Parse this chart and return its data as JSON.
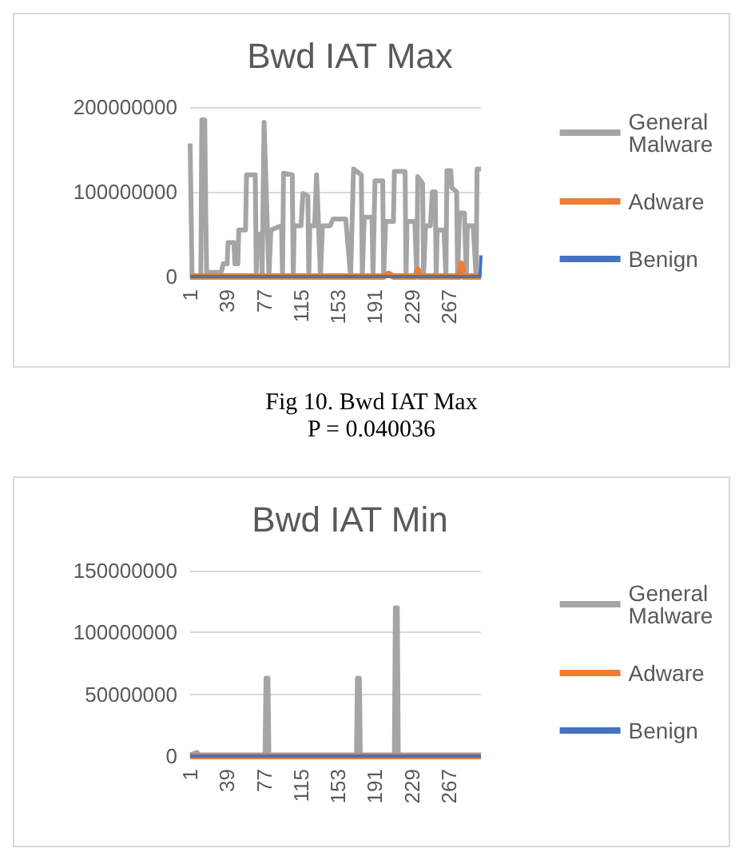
{
  "chart_data": [
    {
      "type": "line",
      "title": "Bwd IAT Max",
      "annotations": [
        "Fig 10. Bwd IAT Max",
        "P = 0.040036"
      ],
      "xlim": [
        1,
        300
      ],
      "xticks": [
        1,
        39,
        77,
        115,
        153,
        191,
        229,
        267
      ],
      "ylim": [
        0,
        200000000
      ],
      "yticks": [
        0,
        100000000,
        200000000
      ],
      "grid": "y",
      "legend": "right",
      "series": [
        {
          "name": "General Malware",
          "color": "#a5a5a5",
          "x": [
            1,
            3,
            12,
            13,
            16,
            17,
            18,
            20,
            33,
            35,
            39,
            40,
            46,
            47,
            50,
            51,
            58,
            59,
            68,
            69,
            70,
            74,
            75,
            77,
            82,
            84,
            95,
            96,
            97,
            106,
            107,
            108,
            115,
            117,
            122,
            123,
            124,
            129,
            131,
            135,
            137,
            145,
            148,
            161,
            166,
            169,
            177,
            178,
            180,
            188,
            189,
            191,
            199,
            200,
            202,
            210,
            211,
            222,
            223,
            224,
            232,
            234,
            235,
            240,
            241,
            243,
            248,
            250,
            253,
            254,
            255,
            262,
            264,
            265,
            269,
            270,
            275,
            276,
            278,
            283,
            285,
            286,
            292,
            295,
            296,
            300
          ],
          "values": [
            157000000,
            0,
            0,
            185000000,
            185000000,
            80000000,
            0,
            5000000,
            5000000,
            15000000,
            15000000,
            40000000,
            40000000,
            15000000,
            15000000,
            55000000,
            55000000,
            120000000,
            120000000,
            0,
            50000000,
            50000000,
            0,
            182000000,
            0,
            55000000,
            60000000,
            0,
            122000000,
            120000000,
            0,
            60000000,
            60000000,
            98000000,
            95000000,
            0,
            60000000,
            60000000,
            120000000,
            0,
            60000000,
            60000000,
            68000000,
            68000000,
            0,
            127000000,
            120000000,
            0,
            70000000,
            70000000,
            0,
            113000000,
            113000000,
            0,
            65000000,
            65000000,
            124000000,
            124000000,
            0,
            65000000,
            65000000,
            0,
            118000000,
            110000000,
            0,
            60000000,
            60000000,
            100000000,
            100000000,
            0,
            55000000,
            55000000,
            0,
            125000000,
            125000000,
            105000000,
            100000000,
            0,
            75000000,
            75000000,
            0,
            60000000,
            60000000,
            0,
            127000000,
            127000000
          ]
        },
        {
          "name": "Adware",
          "color": "#ed7d31",
          "x": [
            1,
            200,
            205,
            210,
            233,
            235,
            237,
            278,
            280,
            282,
            300
          ],
          "values": [
            0,
            0,
            3000000,
            0,
            0,
            8000000,
            0,
            0,
            15000000,
            0,
            0
          ]
        },
        {
          "name": "Benign",
          "color": "#4472c4",
          "x": [
            1,
            299,
            300
          ],
          "values": [
            0,
            0,
            25000000
          ]
        }
      ]
    },
    {
      "type": "line",
      "title": "Bwd IAT Min",
      "xlim": [
        1,
        300
      ],
      "xticks": [
        1,
        39,
        77,
        115,
        153,
        191,
        229,
        267
      ],
      "ylim": [
        0,
        150000000
      ],
      "yticks": [
        0,
        50000000,
        100000000,
        150000000
      ],
      "grid": "y",
      "legend": "right",
      "series": [
        {
          "name": "General Malware",
          "color": "#a5a5a5",
          "x": [
            1,
            8,
            10,
            78,
            79,
            81,
            82,
            172,
            173,
            175,
            176,
            211,
            212,
            214,
            215,
            300
          ],
          "values": [
            1000000,
            3000000,
            1000000,
            1000000,
            63000000,
            63000000,
            1000000,
            1000000,
            63000000,
            63000000,
            1000000,
            1000000,
            120000000,
            120000000,
            1000000,
            1000000
          ]
        },
        {
          "name": "Adware",
          "color": "#ed7d31",
          "x": [
            1,
            300
          ],
          "values": [
            0,
            0
          ]
        },
        {
          "name": "Benign",
          "color": "#4472c4",
          "x": [
            1,
            300
          ],
          "values": [
            0,
            0
          ]
        }
      ]
    }
  ]
}
